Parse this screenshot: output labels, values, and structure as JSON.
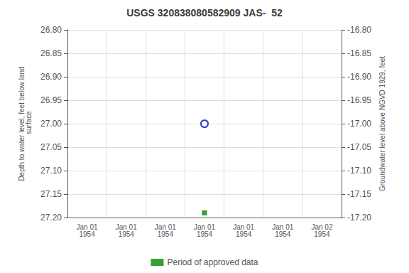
{
  "chart_data": {
    "type": "scatter",
    "title": "USGS 320838080582909 JAS-  52",
    "ylabel": "Depth to water level, feet below land\n surface",
    "y2label": "Groundwater level above NGVD 1929, feet",
    "categories": [
      "Jan 01\n1954",
      "Jan 01\n1954",
      "Jan 01\n1954",
      "Jan 01\n1954",
      "Jan 01\n1954",
      "Jan 01\n1954",
      "Jan 02\n1954"
    ],
    "series": [
      {
        "color": "#0000cc",
        "marker": "open circle",
        "values": [
          null,
          null,
          null,
          27.0,
          null,
          null,
          null
        ]
      },
      {
        "name": "Period of approved data",
        "color": "#008800",
        "marker": "square",
        "values": [
          null,
          null,
          null,
          27.19,
          null,
          null,
          null
        ]
      }
    ],
    "ylim": [
      27.2,
      26.8
    ],
    "yticks": [
      {
        "value": 26.8,
        "label": "26.80"
      },
      {
        "value": 26.85,
        "label": "26.85"
      },
      {
        "value": 26.9,
        "label": "26.90"
      },
      {
        "value": 26.95,
        "label": "26.95"
      },
      {
        "value": 27.0,
        "label": "27.00"
      },
      {
        "value": 27.05,
        "label": "27.05"
      },
      {
        "value": 27.1,
        "label": "27.10"
      },
      {
        "value": 27.15,
        "label": "27.15"
      },
      {
        "value": 27.2,
        "label": "27.20"
      }
    ],
    "y2lim": [
      -17.2,
      -16.8
    ],
    "y2ticks": [
      {
        "value": -16.8,
        "label": "-16.80"
      },
      {
        "value": -16.85,
        "label": "-16.85"
      },
      {
        "value": -16.9,
        "label": "-16.90"
      },
      {
        "value": -16.95,
        "label": "-16.95"
      },
      {
        "value": -17.0,
        "label": "-17.00"
      },
      {
        "value": -17.05,
        "label": "-17.05"
      },
      {
        "value": -17.1,
        "label": "-17.10"
      },
      {
        "value": -17.15,
        "label": "-17.15"
      },
      {
        "value": -17.2,
        "label": "-17.20"
      }
    ],
    "grid": true,
    "legend": "bottom"
  }
}
